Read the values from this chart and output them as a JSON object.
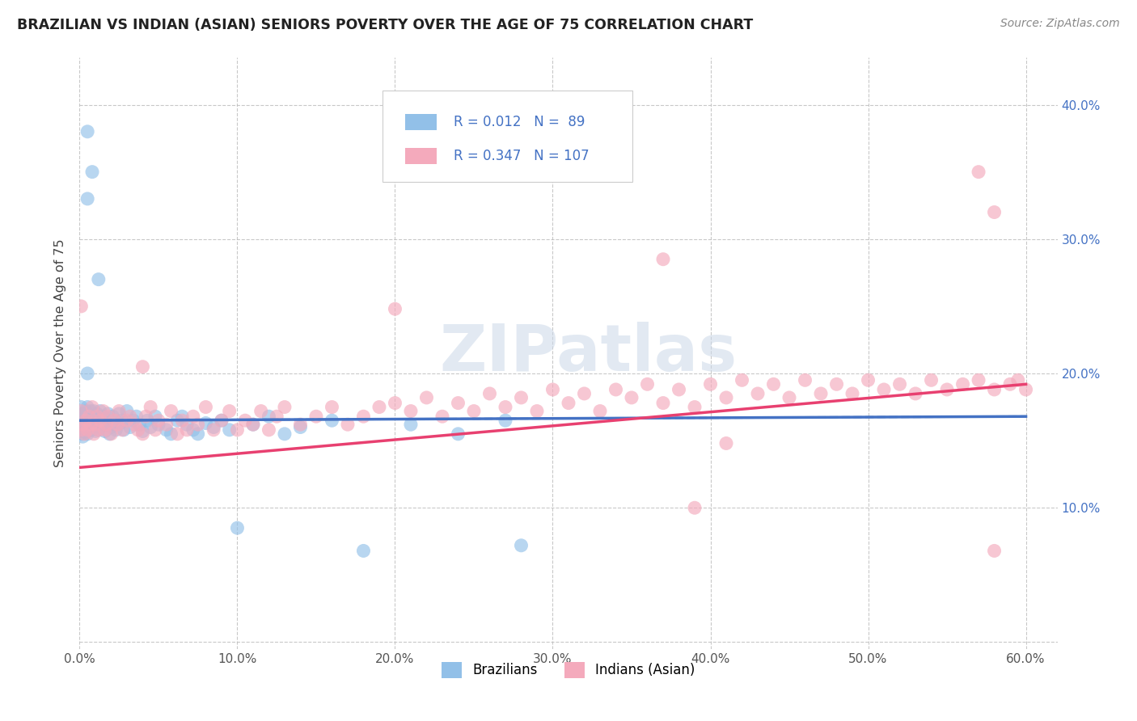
{
  "title": "BRAZILIAN VS INDIAN (ASIAN) SENIORS POVERTY OVER THE AGE OF 75 CORRELATION CHART",
  "source_text": "Source: ZipAtlas.com",
  "ylabel": "Seniors Poverty Over the Age of 75",
  "xlim": [
    0.0,
    0.62
  ],
  "ylim": [
    -0.005,
    0.435
  ],
  "x_ticks": [
    0.0,
    0.1,
    0.2,
    0.3,
    0.4,
    0.5,
    0.6
  ],
  "x_tick_labels": [
    "0.0%",
    "10.0%",
    "20.0%",
    "30.0%",
    "40.0%",
    "50.0%",
    "60.0%"
  ],
  "y_ticks": [
    0.1,
    0.2,
    0.3,
    0.4
  ],
  "y_tick_labels": [
    "10.0%",
    "20.0%",
    "30.0%",
    "40.0%"
  ],
  "watermark": "ZIPatlas",
  "legend_R1": "R = 0.012",
  "legend_N1": "N =  89",
  "legend_R2": "R = 0.347",
  "legend_N2": "N = 107",
  "color_blue": "#92C0E8",
  "color_pink": "#F4AABC",
  "color_blue_line": "#4472C4",
  "color_pink_line": "#E84070",
  "color_blue_dashed": "#7099CC",
  "color_text": "#4472C4",
  "color_grid": "#BBBBBB",
  "background_color": "#FFFFFF",
  "title_fontsize": 12.5,
  "brazil_x": [
    0.001,
    0.001,
    0.001,
    0.001,
    0.001,
    0.001,
    0.002,
    0.002,
    0.002,
    0.002,
    0.003,
    0.003,
    0.003,
    0.003,
    0.004,
    0.004,
    0.004,
    0.005,
    0.005,
    0.005,
    0.005,
    0.005,
    0.006,
    0.006,
    0.007,
    0.007,
    0.008,
    0.008,
    0.009,
    0.009,
    0.01,
    0.01,
    0.01,
    0.011,
    0.011,
    0.012,
    0.013,
    0.013,
    0.014,
    0.015,
    0.015,
    0.016,
    0.017,
    0.018,
    0.019,
    0.02,
    0.021,
    0.022,
    0.023,
    0.025,
    0.026,
    0.027,
    0.028,
    0.03,
    0.032,
    0.034,
    0.036,
    0.038,
    0.04,
    0.043,
    0.045,
    0.048,
    0.05,
    0.055,
    0.058,
    0.062,
    0.065,
    0.068,
    0.072,
    0.075,
    0.08,
    0.085,
    0.09,
    0.095,
    0.1,
    0.11,
    0.12,
    0.13,
    0.14,
    0.16,
    0.18,
    0.21,
    0.24,
    0.27,
    0.005,
    0.005,
    0.008,
    0.012,
    0.28
  ],
  "brazil_y": [
    0.155,
    0.16,
    0.165,
    0.17,
    0.175,
    0.158,
    0.162,
    0.158,
    0.153,
    0.168,
    0.163,
    0.157,
    0.17,
    0.165,
    0.16,
    0.172,
    0.156,
    0.2,
    0.155,
    0.168,
    0.162,
    0.175,
    0.158,
    0.163,
    0.16,
    0.172,
    0.166,
    0.158,
    0.16,
    0.172,
    0.162,
    0.157,
    0.168,
    0.163,
    0.17,
    0.158,
    0.165,
    0.172,
    0.16,
    0.162,
    0.168,
    0.157,
    0.163,
    0.17,
    0.155,
    0.16,
    0.168,
    0.162,
    0.158,
    0.17,
    0.163,
    0.165,
    0.158,
    0.172,
    0.16,
    0.165,
    0.168,
    0.162,
    0.157,
    0.165,
    0.16,
    0.168,
    0.162,
    0.158,
    0.155,
    0.165,
    0.168,
    0.162,
    0.158,
    0.155,
    0.163,
    0.16,
    0.165,
    0.158,
    0.085,
    0.162,
    0.168,
    0.155,
    0.16,
    0.165,
    0.068,
    0.162,
    0.155,
    0.165,
    0.33,
    0.38,
    0.35,
    0.27,
    0.072
  ],
  "india_x": [
    0.001,
    0.001,
    0.002,
    0.003,
    0.004,
    0.005,
    0.006,
    0.007,
    0.008,
    0.009,
    0.01,
    0.011,
    0.012,
    0.013,
    0.015,
    0.016,
    0.017,
    0.018,
    0.02,
    0.022,
    0.024,
    0.025,
    0.027,
    0.03,
    0.032,
    0.035,
    0.037,
    0.04,
    0.042,
    0.045,
    0.048,
    0.05,
    0.055,
    0.058,
    0.062,
    0.065,
    0.068,
    0.072,
    0.075,
    0.08,
    0.085,
    0.09,
    0.095,
    0.1,
    0.105,
    0.11,
    0.115,
    0.12,
    0.125,
    0.13,
    0.14,
    0.15,
    0.16,
    0.17,
    0.18,
    0.19,
    0.2,
    0.21,
    0.22,
    0.23,
    0.24,
    0.25,
    0.26,
    0.27,
    0.28,
    0.29,
    0.3,
    0.31,
    0.32,
    0.33,
    0.34,
    0.35,
    0.36,
    0.37,
    0.38,
    0.39,
    0.4,
    0.41,
    0.42,
    0.43,
    0.44,
    0.45,
    0.46,
    0.47,
    0.48,
    0.49,
    0.5,
    0.51,
    0.52,
    0.53,
    0.54,
    0.55,
    0.56,
    0.57,
    0.58,
    0.59,
    0.595,
    0.6,
    0.001,
    0.04,
    0.2,
    0.57,
    0.58,
    0.37,
    0.39,
    0.41,
    0.58
  ],
  "india_y": [
    0.158,
    0.172,
    0.162,
    0.155,
    0.165,
    0.158,
    0.168,
    0.162,
    0.175,
    0.155,
    0.162,
    0.168,
    0.158,
    0.165,
    0.172,
    0.158,
    0.162,
    0.168,
    0.155,
    0.165,
    0.162,
    0.172,
    0.158,
    0.165,
    0.168,
    0.162,
    0.158,
    0.155,
    0.168,
    0.175,
    0.158,
    0.165,
    0.162,
    0.172,
    0.155,
    0.165,
    0.158,
    0.168,
    0.162,
    0.175,
    0.158,
    0.165,
    0.172,
    0.158,
    0.165,
    0.162,
    0.172,
    0.158,
    0.168,
    0.175,
    0.162,
    0.168,
    0.175,
    0.162,
    0.168,
    0.175,
    0.178,
    0.172,
    0.182,
    0.168,
    0.178,
    0.172,
    0.185,
    0.175,
    0.182,
    0.172,
    0.188,
    0.178,
    0.185,
    0.172,
    0.188,
    0.182,
    0.192,
    0.178,
    0.188,
    0.175,
    0.192,
    0.182,
    0.195,
    0.185,
    0.192,
    0.182,
    0.195,
    0.185,
    0.192,
    0.185,
    0.195,
    0.188,
    0.192,
    0.185,
    0.195,
    0.188,
    0.192,
    0.195,
    0.188,
    0.192,
    0.195,
    0.188,
    0.25,
    0.205,
    0.248,
    0.35,
    0.32,
    0.285,
    0.1,
    0.148,
    0.068
  ]
}
